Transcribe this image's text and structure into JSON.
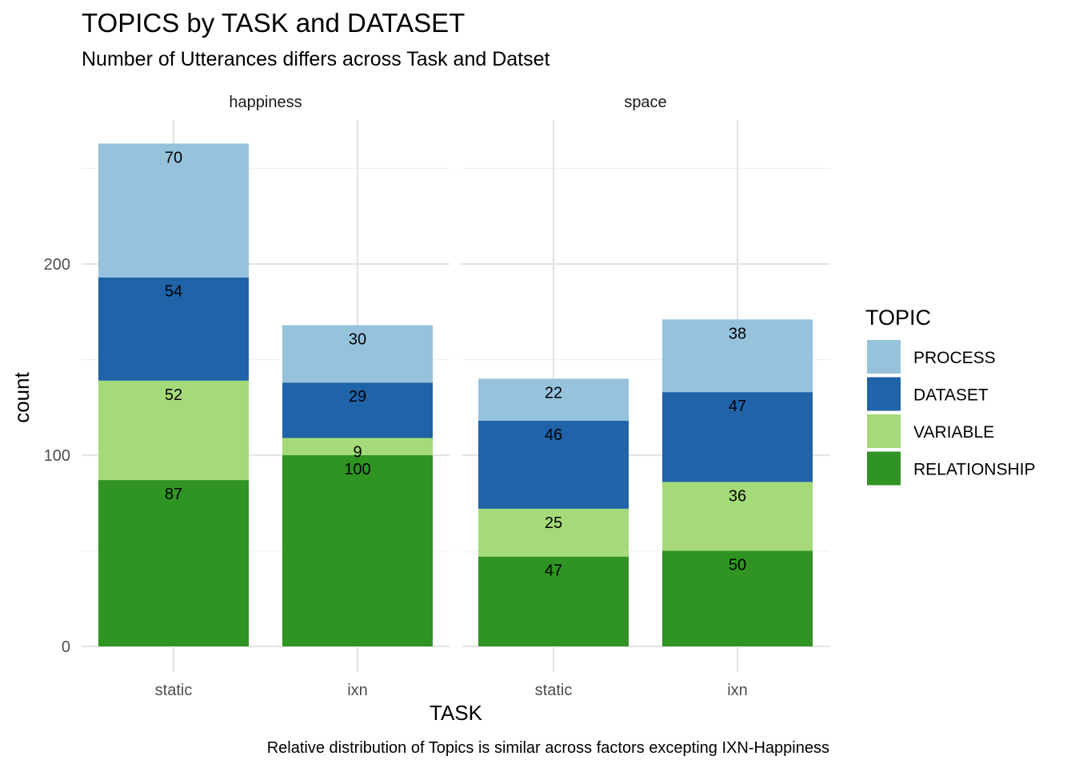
{
  "chart_data": {
    "type": "bar",
    "stacked": true,
    "title": "TOPICS by TASK and DATASET",
    "subtitle": "Number of Utterances differs across Task and Datset",
    "caption": "Relative distribution of Topics is similar across factors excepting IXN-Happiness",
    "xlabel": "TASK",
    "ylabel": "count",
    "ylim": [
      0,
      275
    ],
    "y_ticks": [
      "0",
      "100",
      "200"
    ],
    "grid": true,
    "legend": {
      "title": "TOPIC",
      "position": "right",
      "items": [
        {
          "name": "PROCESS",
          "color": "#96C2DC"
        },
        {
          "name": "DATASET",
          "color": "#1F63A8"
        },
        {
          "name": "VARIABLE",
          "color": "#A5DA79"
        },
        {
          "name": "RELATIONSHIP",
          "color": "#2F9422"
        }
      ]
    },
    "stack_order_bottom_to_top": [
      "RELATIONSHIP",
      "VARIABLE",
      "DATASET",
      "PROCESS"
    ],
    "facets": [
      {
        "name": "happiness",
        "categories": [
          "static",
          "ixn"
        ],
        "series": [
          {
            "name": "RELATIONSHIP",
            "values": [
              87,
              100
            ]
          },
          {
            "name": "VARIABLE",
            "values": [
              52,
              9
            ]
          },
          {
            "name": "DATASET",
            "values": [
              54,
              29
            ]
          },
          {
            "name": "PROCESS",
            "values": [
              70,
              30
            ]
          }
        ]
      },
      {
        "name": "space",
        "categories": [
          "static",
          "ixn"
        ],
        "series": [
          {
            "name": "RELATIONSHIP",
            "values": [
              47,
              50
            ]
          },
          {
            "name": "VARIABLE",
            "values": [
              25,
              36
            ]
          },
          {
            "name": "DATASET",
            "values": [
              46,
              47
            ]
          },
          {
            "name": "PROCESS",
            "values": [
              22,
              38
            ]
          }
        ]
      }
    ]
  }
}
